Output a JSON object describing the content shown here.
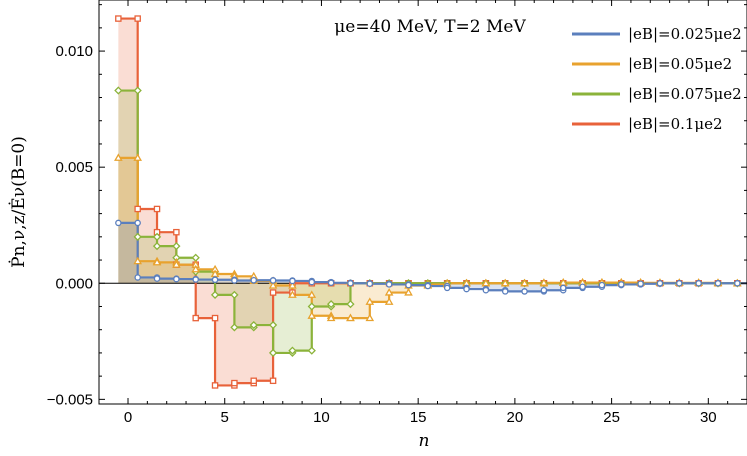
{
  "chart_data": {
    "type": "line",
    "title": "μe=40 MeV, T=2 MeV",
    "xlabel": "n",
    "ylabel": "Ṗn,ν,z/Ėν(B=0)",
    "xlim": [
      -1.5,
      32
    ],
    "ylim": [
      -0.0052,
      0.0122
    ],
    "x_ticks": [
      0,
      5,
      10,
      15,
      20,
      25,
      30
    ],
    "x_tick_labels": [
      "0",
      "5",
      "10",
      "15",
      "20",
      "25",
      "30"
    ],
    "y_ticks": [
      -0.005,
      0.0,
      0.005,
      0.01
    ],
    "y_tick_labels": [
      "−0.005",
      "0.000",
      "0.005",
      "0.010"
    ],
    "legend_position": "top-right",
    "grid": false,
    "series": [
      {
        "name": "|eB|=0.025μe2",
        "color": "#5b7fbd",
        "marker": "circle",
        "x": [
          0,
          1,
          2,
          3,
          4,
          5,
          6,
          7,
          8,
          9,
          10,
          11,
          12,
          13,
          14,
          15,
          16,
          17,
          18,
          19,
          20,
          21,
          22,
          23,
          24,
          25,
          26,
          27,
          28,
          29,
          30,
          31,
          32
        ],
        "values": [
          0.0026,
          0.00025,
          0.0002,
          0.00018,
          0.00016,
          0.00015,
          0.00012,
          0.00013,
          0.00012,
          0.0001,
          5e-05,
          2e-05,
          0.0,
          -2e-05,
          -5e-05,
          -8e-05,
          -0.00012,
          -0.0002,
          -0.00025,
          -0.0003,
          -0.00035,
          -0.00035,
          -0.0003,
          -0.0002,
          -0.00015,
          -8e-05,
          -5e-05,
          -2e-05,
          0.0,
          0.0,
          0.0,
          0.0,
          0.0
        ]
      },
      {
        "name": "|eB|=0.05μe2",
        "color": "#e8a22e",
        "marker": "triangle",
        "x": [
          0,
          1,
          2,
          3,
          4,
          5,
          6,
          7,
          8,
          9,
          10,
          11,
          12,
          13,
          14,
          15,
          16,
          17,
          18,
          19,
          20,
          21,
          22,
          23,
          24,
          25,
          26,
          27,
          28,
          29,
          30,
          31,
          32
        ],
        "values": [
          0.0054,
          0.00095,
          0.0009,
          0.0008,
          0.0006,
          0.0004,
          0.0003,
          0.0001,
          -0.0001,
          -0.0005,
          -0.0014,
          -0.0015,
          -0.0015,
          -0.0008,
          -0.0004,
          -0.0001,
          -5e-05,
          0.0,
          0.0,
          0.0,
          0.0,
          0.0,
          2e-05,
          3e-05,
          3e-05,
          3e-05,
          3e-05,
          2e-05,
          2e-05,
          2e-05,
          2e-05,
          0.0,
          0.0
        ]
      },
      {
        "name": "|eB|=0.075μe2",
        "color": "#8bb33a",
        "marker": "diamond",
        "x": [
          0,
          1,
          2,
          3,
          4,
          5,
          6,
          7,
          8,
          9,
          10,
          11,
          12,
          13,
          14,
          15,
          16,
          17,
          18,
          19,
          20,
          21,
          22,
          23,
          24,
          25,
          26,
          27,
          28,
          29,
          30,
          31,
          32
        ],
        "values": [
          0.0083,
          0.002,
          0.0016,
          0.0011,
          0.0005,
          -0.0005,
          -0.0019,
          -0.0018,
          -0.003,
          -0.0029,
          -0.001,
          -0.0009,
          0.0,
          0.0,
          0.0,
          0.0,
          0.0,
          0.0,
          0.0,
          0.0,
          0.0,
          0.0,
          0.0,
          0.0,
          0.0,
          0.0,
          0.0,
          0.0,
          0.0,
          0.0,
          0.0,
          0.0,
          0.0
        ]
      },
      {
        "name": "|eB|=0.1μe2",
        "color": "#e8623a",
        "marker": "square",
        "x": [
          0,
          1,
          2,
          3,
          4,
          5,
          6,
          7,
          8,
          9,
          10,
          11,
          12,
          13,
          14,
          15,
          16,
          17,
          18,
          19,
          20,
          21,
          22,
          23,
          24,
          25,
          26,
          27,
          28,
          29,
          30,
          31,
          32
        ],
        "values": [
          0.0114,
          0.0032,
          0.0022,
          0.0008,
          -0.0015,
          -0.0044,
          -0.0043,
          -0.0042,
          -0.0004,
          0.0,
          0.0,
          0.0,
          0.0,
          0.0,
          0.0,
          0.0,
          0.0,
          0.0,
          0.0,
          0.0,
          0.0,
          0.0,
          0.0,
          0.0,
          0.0,
          0.0,
          0.0,
          0.0,
          0.0,
          0.0,
          0.0,
          0.0,
          0.0
        ]
      }
    ]
  }
}
